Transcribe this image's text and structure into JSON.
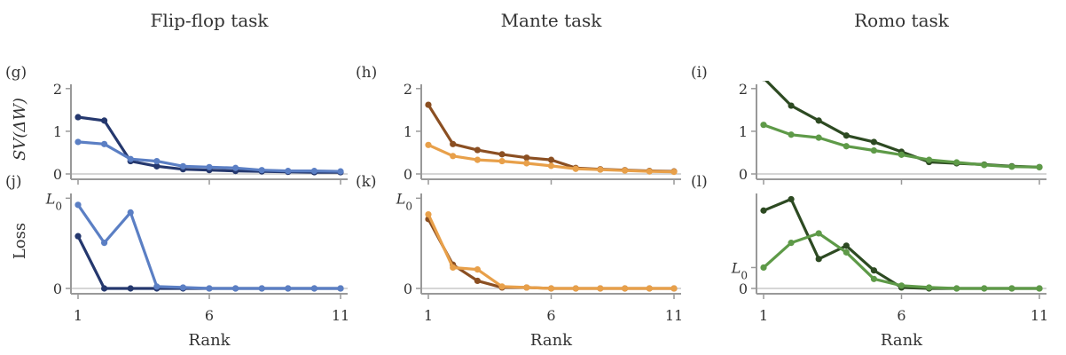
{
  "chart_data": [
    {
      "id": "g",
      "type": "line",
      "panel_label": "(g)",
      "column_title": "Flip-flop task",
      "ylabel": "SV(ΔW)",
      "xlabel": "",
      "x": [
        1,
        2,
        3,
        4,
        5,
        6,
        7,
        8,
        9,
        10,
        11
      ],
      "xticks": [
        1,
        6,
        11
      ],
      "xtick_labels": [
        "",
        "",
        ""
      ],
      "ylim": [
        0,
        2.1
      ],
      "yticks": [
        0,
        1,
        2
      ],
      "ytick_labels": [
        "0",
        "1",
        "2"
      ],
      "series": [
        {
          "color": "#25386e",
          "values": [
            1.33,
            1.25,
            0.3,
            0.18,
            0.11,
            0.09,
            0.07,
            0.06,
            0.05,
            0.04,
            0.04
          ]
        },
        {
          "color": "#5b7fc4",
          "values": [
            0.75,
            0.7,
            0.35,
            0.3,
            0.18,
            0.16,
            0.14,
            0.09,
            0.07,
            0.07,
            0.06
          ]
        }
      ]
    },
    {
      "id": "h",
      "type": "line",
      "panel_label": "(h)",
      "column_title": "Mante task",
      "ylabel": "",
      "xlabel": "",
      "x": [
        1,
        2,
        3,
        4,
        5,
        6,
        7,
        8,
        9,
        10,
        11
      ],
      "xticks": [
        1,
        6,
        11
      ],
      "xtick_labels": [
        "",
        "",
        ""
      ],
      "ylim": [
        0,
        2.1
      ],
      "yticks": [
        0,
        1,
        2
      ],
      "ytick_labels": [
        "0",
        "1",
        "2"
      ],
      "series": [
        {
          "color": "#8b4f22",
          "values": [
            1.62,
            0.7,
            0.56,
            0.46,
            0.38,
            0.33,
            0.14,
            0.11,
            0.09,
            0.07,
            0.06
          ]
        },
        {
          "color": "#e8a04a",
          "values": [
            0.68,
            0.42,
            0.33,
            0.3,
            0.25,
            0.19,
            0.12,
            0.1,
            0.08,
            0.06,
            0.05
          ]
        }
      ]
    },
    {
      "id": "i",
      "type": "line",
      "panel_label": "(i)",
      "column_title": "Romo task",
      "ylabel": "",
      "xlabel": "",
      "x": [
        1,
        2,
        3,
        4,
        5,
        6,
        7,
        8,
        9,
        10,
        11
      ],
      "xticks": [
        1,
        6,
        11
      ],
      "xtick_labels": [
        "",
        "",
        ""
      ],
      "ylim": [
        0,
        2.1
      ],
      "yticks": [
        0,
        1,
        2
      ],
      "ytick_labels": [
        "0",
        "1",
        "2"
      ],
      "series": [
        {
          "color": "#2d4a22",
          "values": [
            2.25,
            1.6,
            1.25,
            0.9,
            0.75,
            0.52,
            0.28,
            0.25,
            0.22,
            0.18,
            0.16
          ]
        },
        {
          "color": "#5e9a48",
          "values": [
            1.15,
            0.92,
            0.85,
            0.65,
            0.55,
            0.45,
            0.33,
            0.27,
            0.21,
            0.17,
            0.16
          ]
        }
      ]
    },
    {
      "id": "j",
      "type": "line",
      "panel_label": "(j)",
      "column_title": "",
      "ylabel": "Loss",
      "xlabel": "Rank",
      "x": [
        1,
        2,
        3,
        4,
        5,
        6,
        7,
        8,
        9,
        10,
        11
      ],
      "xticks": [
        1,
        6,
        11
      ],
      "xtick_labels": [
        "1",
        "6",
        "11"
      ],
      "ylim": [
        0,
        1.0
      ],
      "yticks": [
        0,
        0.95
      ],
      "ytick_labels": [
        "0",
        "L0"
      ],
      "series": [
        {
          "color": "#25386e",
          "values": [
            0.55,
            0.0,
            0.0,
            0.0,
            0.0,
            0.0,
            0.0,
            0.0,
            0.0,
            0.0,
            0.0
          ]
        },
        {
          "color": "#5b7fc4",
          "values": [
            0.88,
            0.48,
            0.8,
            0.02,
            0.01,
            0.0,
            0.0,
            0.0,
            0.0,
            0.0,
            0.0
          ]
        }
      ]
    },
    {
      "id": "k",
      "type": "line",
      "panel_label": "(k)",
      "column_title": "",
      "ylabel": "",
      "xlabel": "Rank",
      "x": [
        1,
        2,
        3,
        4,
        5,
        6,
        7,
        8,
        9,
        10,
        11
      ],
      "xticks": [
        1,
        6,
        11
      ],
      "xtick_labels": [
        "1",
        "6",
        "11"
      ],
      "ylim": [
        0,
        1.0
      ],
      "yticks": [
        0,
        0.95
      ],
      "ytick_labels": [
        "0",
        "L0"
      ],
      "series": [
        {
          "color": "#8b4f22",
          "values": [
            0.73,
            0.25,
            0.08,
            0.01,
            0.01,
            0.0,
            0.0,
            0.0,
            0.0,
            0.0,
            0.0
          ]
        },
        {
          "color": "#e8a04a",
          "values": [
            0.78,
            0.22,
            0.2,
            0.02,
            0.01,
            0.0,
            0.0,
            0.0,
            0.0,
            0.0,
            0.0
          ]
        }
      ]
    },
    {
      "id": "l",
      "type": "line",
      "panel_label": "(l)",
      "column_title": "",
      "ylabel": "",
      "xlabel": "Rank",
      "x": [
        1,
        2,
        3,
        4,
        5,
        6,
        7,
        8,
        9,
        10,
        11
      ],
      "xticks": [
        1,
        6,
        11
      ],
      "xtick_labels": [
        "1",
        "6",
        "11"
      ],
      "ylim": [
        0,
        1.0
      ],
      "yticks": [
        0,
        0.22
      ],
      "ytick_labels": [
        "0",
        "L0"
      ],
      "series": [
        {
          "color": "#2d4a22",
          "values": [
            0.82,
            0.94,
            0.31,
            0.45,
            0.19,
            0.01,
            0.0,
            0.0,
            0.0,
            0.0,
            0.0
          ]
        },
        {
          "color": "#5e9a48",
          "values": [
            0.22,
            0.48,
            0.58,
            0.38,
            0.1,
            0.03,
            0.01,
            0.0,
            0.0,
            0.0,
            0.0
          ]
        }
      ]
    }
  ]
}
